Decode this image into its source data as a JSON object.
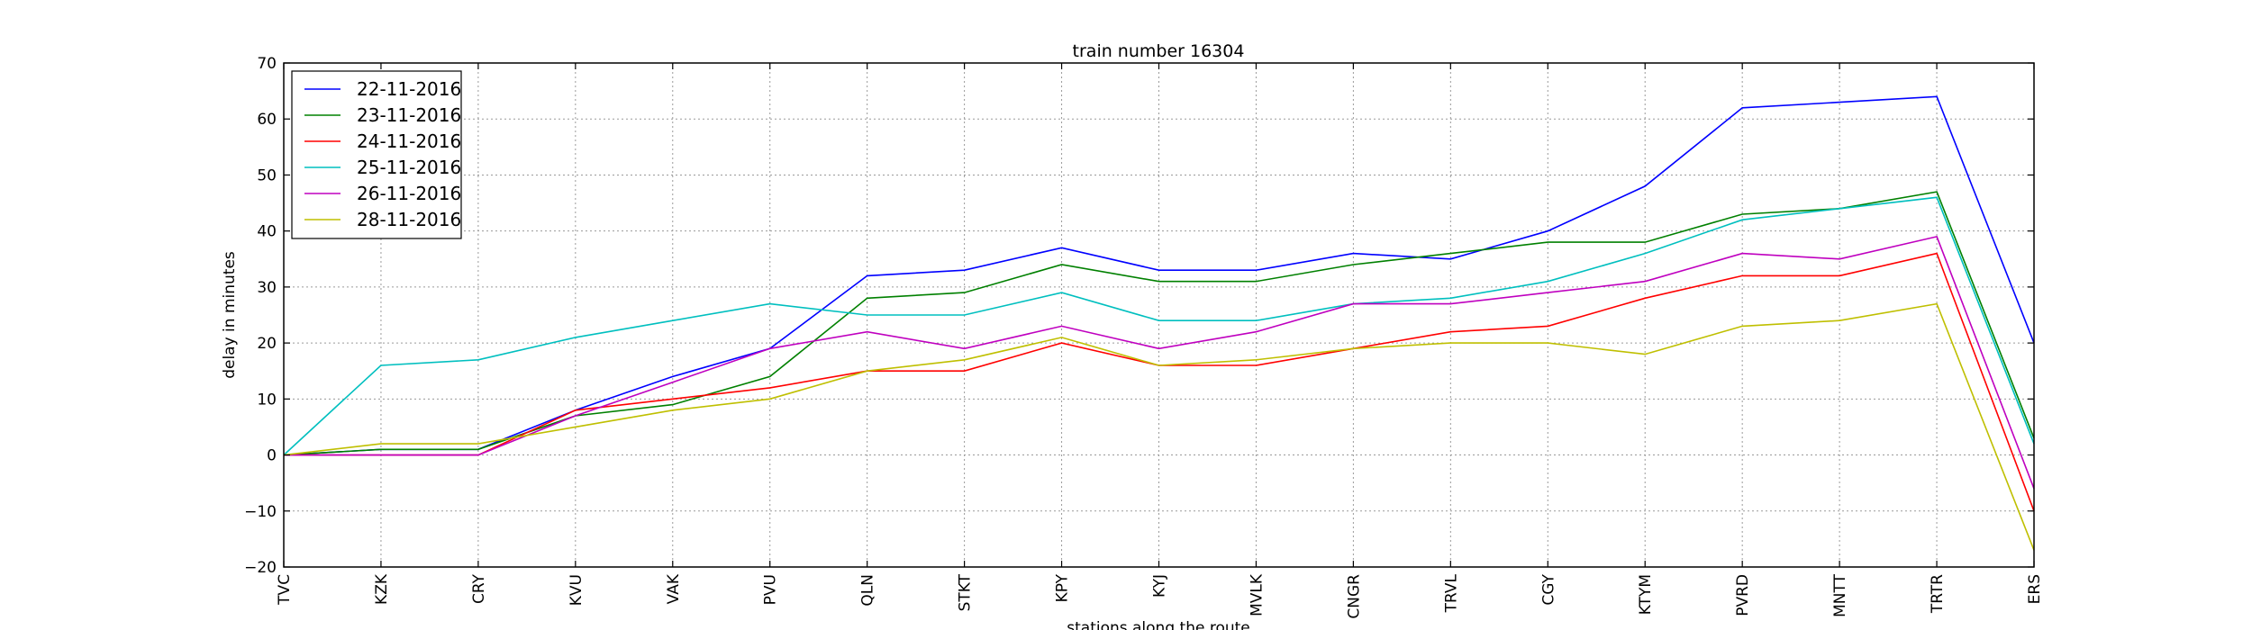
{
  "chart_data": {
    "type": "line",
    "title": "train number 16304",
    "xlabel": "stations along the route",
    "ylabel": "delay in minutes",
    "ylim": [
      -20,
      70
    ],
    "yticks": [
      -20,
      -10,
      0,
      10,
      20,
      30,
      40,
      50,
      60,
      70
    ],
    "grid": true,
    "legend_position": "top-left",
    "categories": [
      "TVC",
      "KZK",
      "CRY",
      "KVU",
      "VAK",
      "PVU",
      "QLN",
      "STKT",
      "KPY",
      "KYJ",
      "MVLK",
      "CNGR",
      "TRVL",
      "CGY",
      "KTYM",
      "PVRD",
      "MNTT",
      "TRTR",
      "ERS"
    ],
    "series": [
      {
        "name": "22-11-2016",
        "color": "#0000ff",
        "values": [
          0,
          1,
          1,
          8,
          14,
          19,
          32,
          33,
          37,
          33,
          33,
          36,
          35,
          40,
          48,
          62,
          63,
          64,
          20
        ]
      },
      {
        "name": "23-11-2016",
        "color": "#008000",
        "values": [
          0,
          1,
          1,
          7,
          9,
          14,
          28,
          29,
          34,
          31,
          31,
          34,
          36,
          38,
          38,
          43,
          44,
          47,
          3
        ]
      },
      {
        "name": "24-11-2016",
        "color": "#ff0000",
        "values": [
          0,
          0,
          0,
          8,
          10,
          12,
          15,
          15,
          20,
          16,
          16,
          19,
          22,
          23,
          28,
          32,
          32,
          36,
          -10
        ]
      },
      {
        "name": "25-11-2016",
        "color": "#00bfbf",
        "values": [
          0,
          16,
          17,
          21,
          24,
          27,
          25,
          25,
          29,
          24,
          24,
          27,
          28,
          31,
          36,
          42,
          44,
          46,
          2
        ]
      },
      {
        "name": "26-11-2016",
        "color": "#bf00bf",
        "values": [
          0,
          0,
          0,
          7,
          13,
          19,
          22,
          19,
          23,
          19,
          22,
          27,
          27,
          29,
          31,
          36,
          35,
          39,
          -6
        ]
      },
      {
        "name": "28-11-2016",
        "color": "#bfbf00",
        "values": [
          0,
          2,
          2,
          5,
          8,
          10,
          15,
          17,
          21,
          16,
          17,
          19,
          20,
          20,
          18,
          23,
          24,
          27,
          -17
        ]
      }
    ]
  }
}
